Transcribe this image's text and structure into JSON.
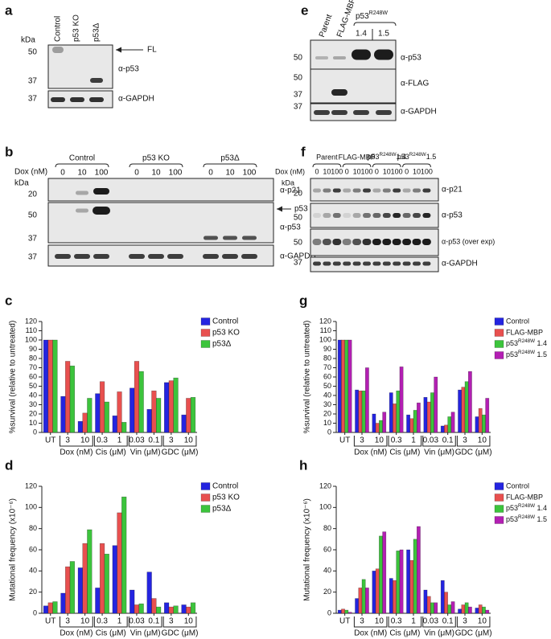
{
  "blots": [
    {
      "letter": "a",
      "kda_title": "kDa",
      "lanes": [
        "Control",
        "p53 KO",
        "p53Δ"
      ],
      "markers": [
        "50",
        "37",
        "37"
      ],
      "antibodies": [
        "α-p53",
        "α-GAPDH"
      ],
      "arrow": "FL"
    },
    {
      "letter": "b",
      "dose_title": "Dox (nM)",
      "kda_title": "kDa",
      "groups": [
        "Control",
        "p53 KO",
        "p53Δ"
      ],
      "doses": [
        "0",
        "10",
        "100",
        "0",
        "10",
        "100",
        "0",
        "10",
        "100"
      ],
      "markers": [
        "20",
        "50",
        "37",
        "37"
      ],
      "antibodies": [
        "α-p21",
        "α-p53",
        "α-GAPDH"
      ],
      "arrow": "p53 FL"
    },
    {
      "letter": "e",
      "kda_title": "kDa",
      "lanes": [
        "Parent",
        "FLAG-MBP"
      ],
      "group": "p53R248W",
      "clones": [
        "1.4",
        "1.5"
      ],
      "markers": [
        "50",
        "50",
        "37",
        "37"
      ],
      "antibodies": [
        "α-p53",
        "α-FLAG",
        "α-GAPDH"
      ]
    },
    {
      "letter": "f",
      "dose_title": "Dox (nM)",
      "kda_title": "kDa",
      "groups": [
        "Parent",
        "FLAG-MBP",
        "p53R248W1.4",
        "p53R248W1.5"
      ],
      "doses": [
        "0",
        "10",
        "100",
        "0",
        "10",
        "100",
        "0",
        "10",
        "100",
        "0",
        "10",
        "100"
      ],
      "markers": [
        "20",
        "50",
        "50",
        "37"
      ],
      "antibodies": [
        "α-p21",
        "α-p53",
        "α-p53 (over exp)",
        "α-GAPDH"
      ]
    }
  ],
  "chart_data": [
    {
      "type": "bar",
      "letter": "c",
      "y_label": "%survival (relative to untreated)",
      "categories": [
        "UT",
        "3",
        "10",
        "0.3",
        "1",
        "0.03",
        "0.1",
        "3",
        "10"
      ],
      "groups": [
        "Dox (nM)",
        "Cis (μM)",
        "Vin (μM)",
        "GDC (μM)"
      ],
      "ylim": [
        0,
        120
      ],
      "yticks": [
        0,
        10,
        20,
        30,
        40,
        50,
        60,
        70,
        80,
        90,
        100,
        110,
        120
      ],
      "series": [
        {
          "name": "Control",
          "color": "#2424e0",
          "values": [
            100,
            39,
            12,
            42,
            18,
            48,
            25,
            54,
            19
          ]
        },
        {
          "name": "p53 KO",
          "color": "#e8504f",
          "values": [
            100,
            77,
            21,
            55,
            44,
            77,
            45,
            56,
            37
          ]
        },
        {
          "name": "p53Δ",
          "color": "#3cc43c",
          "values": [
            100,
            72,
            37,
            33,
            11,
            66,
            37,
            59,
            38
          ]
        }
      ]
    },
    {
      "type": "bar",
      "letter": "d",
      "y_label": "Mutational frequency (x10⁻⁶)",
      "categories": [
        "UT",
        "3",
        "10",
        "0.3",
        "1",
        "0.03",
        "0.1",
        "3",
        "10"
      ],
      "groups": [
        "Dox (nM)",
        "Cis (μM)",
        "Vin (μM)",
        "GDC (μM)"
      ],
      "ylim": [
        0,
        120
      ],
      "yticks": [
        0,
        20,
        40,
        60,
        80,
        100,
        120
      ],
      "series": [
        {
          "name": "Control",
          "color": "#2424e0",
          "values": [
            7,
            19,
            43,
            24,
            64,
            22,
            39,
            10,
            8
          ]
        },
        {
          "name": "p53 KO",
          "color": "#e8504f",
          "values": [
            10,
            44,
            66,
            66,
            95,
            8,
            14,
            6,
            6
          ]
        },
        {
          "name": "p53Δ",
          "color": "#3cc43c",
          "values": [
            11,
            49,
            79,
            56,
            110,
            9,
            6,
            7,
            10
          ]
        }
      ]
    },
    {
      "type": "bar",
      "letter": "g",
      "y_label": "%survival (relative to untreated)",
      "categories": [
        "UT",
        "3",
        "10",
        "0.3",
        "1",
        "0.03",
        "0.1",
        "3",
        "10"
      ],
      "groups": [
        "Dox (nM)",
        "Cis (μM)",
        "Vin (μM)",
        "GDC (μM)"
      ],
      "ylim": [
        0,
        120
      ],
      "yticks": [
        0,
        10,
        20,
        30,
        40,
        50,
        60,
        70,
        80,
        90,
        100,
        110,
        120
      ],
      "series": [
        {
          "name": "Control",
          "color": "#2424e0",
          "values": [
            100,
            46,
            20,
            43,
            19,
            38,
            7,
            46,
            17
          ]
        },
        {
          "name": "FLAG-MBP",
          "color": "#e8504f",
          "values": [
            100,
            45,
            10,
            31,
            15,
            33,
            8,
            49,
            26
          ]
        },
        {
          "name": "p53R248W 1.4",
          "color": "#3cc43c",
          "values": [
            100,
            45,
            13,
            45,
            24,
            43,
            17,
            55,
            19
          ]
        },
        {
          "name": "p53R248W 1.5",
          "color": "#b31fb3",
          "values": [
            100,
            70,
            22,
            71,
            32,
            60,
            22,
            66,
            37
          ]
        }
      ]
    },
    {
      "type": "bar",
      "letter": "h",
      "y_label": "Mutational frequency (x10⁻⁶)",
      "categories": [
        "UT",
        "3",
        "10",
        "0.3",
        "1",
        "0.03",
        "0.1",
        "3",
        "10"
      ],
      "groups": [
        "Dox (nM)",
        "Cis (μM)",
        "Vin (μM)",
        "GDC (μM)"
      ],
      "ylim": [
        0,
        120
      ],
      "yticks": [
        0,
        20,
        40,
        60,
        80,
        100,
        120
      ],
      "series": [
        {
          "name": "Control",
          "color": "#2424e0",
          "values": [
            3,
            14,
            40,
            33,
            60,
            22,
            31,
            4,
            5
          ]
        },
        {
          "name": "FLAG-MBP",
          "color": "#e8504f",
          "values": [
            4,
            24,
            42,
            31,
            50,
            16,
            20,
            8,
            8
          ]
        },
        {
          "name": "p53R248W 1.4",
          "color": "#3cc43c",
          "values": [
            3,
            32,
            73,
            59,
            70,
            10,
            8,
            10,
            6
          ]
        },
        {
          "name": "p53R248W 1.5",
          "color": "#b31fb3",
          "values": [
            1,
            24,
            77,
            60,
            82,
            10,
            11,
            6,
            3
          ]
        }
      ]
    }
  ]
}
